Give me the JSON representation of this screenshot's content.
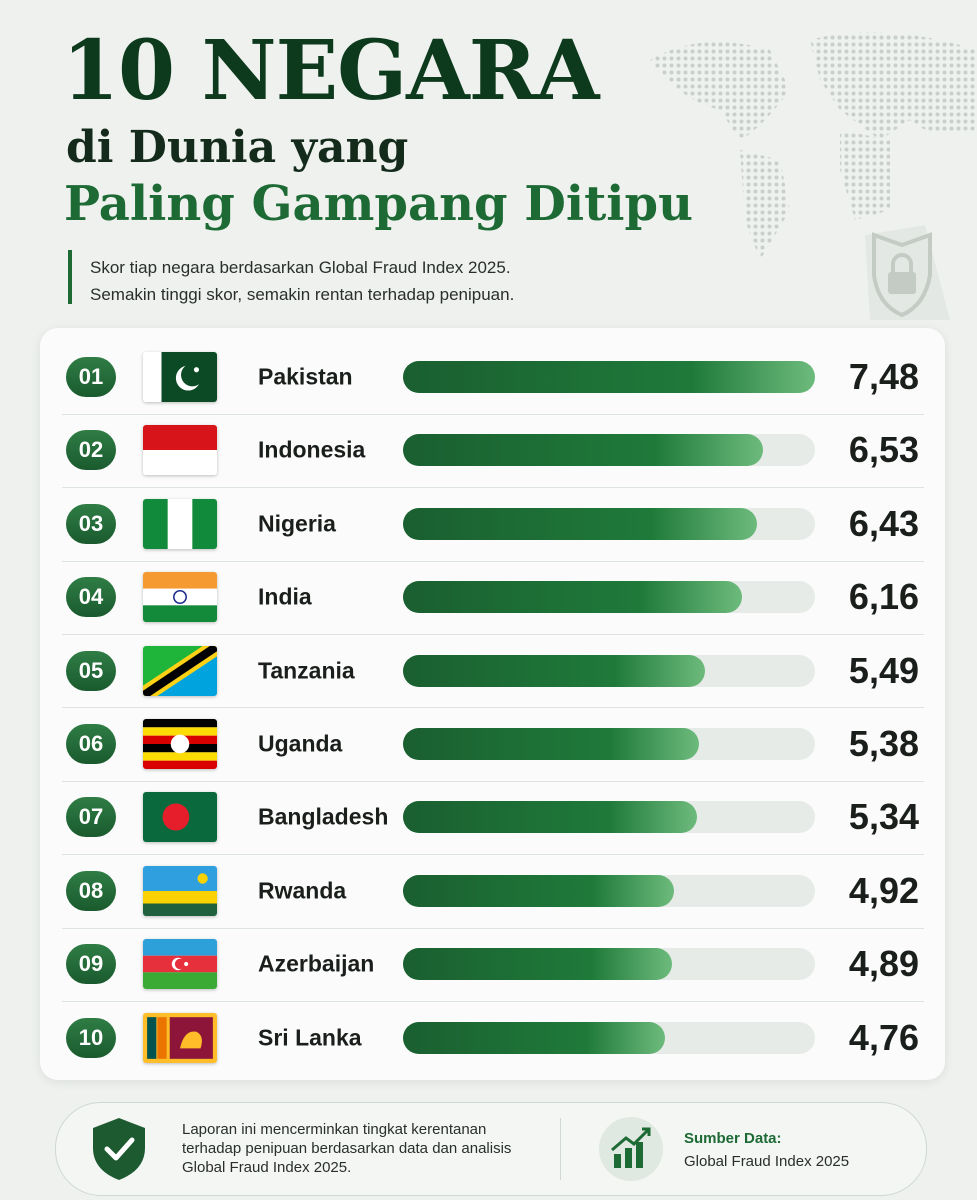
{
  "chart_data": {
    "type": "bar",
    "orientation": "horizontal",
    "title": "10 NEGARA",
    "title_line2": "di Dunia yang",
    "title_line3": "Paling Gampang Ditipu",
    "subtitle": [
      "Skor tiap negara berdasarkan Global Fraud Index 2025.",
      "Semakin tinggi skor, semakin rentan terhadap penipuan."
    ],
    "ranks": [
      "01",
      "02",
      "03",
      "04",
      "05",
      "06",
      "07",
      "08",
      "09",
      "10"
    ],
    "categories": [
      "Pakistan",
      "Indonesia",
      "Nigeria",
      "India",
      "Tanzania",
      "Uganda",
      "Bangladesh",
      "Rwanda",
      "Azerbaijan",
      "Sri Lanka"
    ],
    "values": [
      7.48,
      6.53,
      6.43,
      6.16,
      5.49,
      5.38,
      5.34,
      4.92,
      4.89,
      4.76
    ],
    "value_labels": [
      "7,48",
      "6,53",
      "6,43",
      "6,16",
      "5,49",
      "5,38",
      "5,34",
      "4,92",
      "4,89",
      "4,76"
    ],
    "color": "#1f7a3a"
  },
  "footer": {
    "note": "Laporan ini mencerminkan tingkat kerentanan terhadap penipuan berdasarkan data dan analisis Global Fraud Index 2025.",
    "source_label": "Sumber Data:",
    "source": "Global Fraud Index 2025"
  }
}
